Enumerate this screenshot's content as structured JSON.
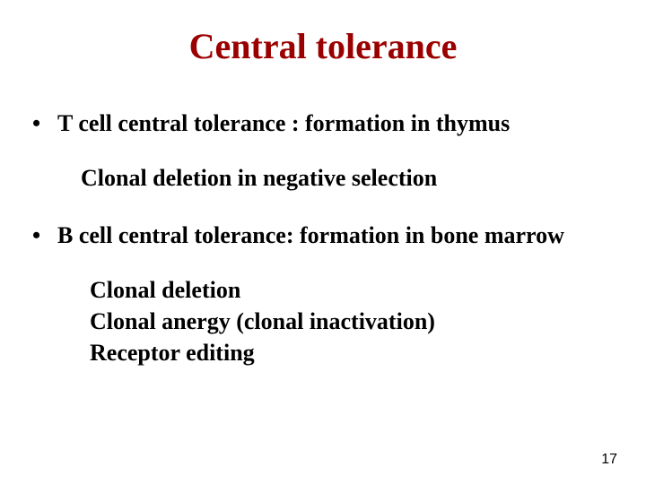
{
  "colors": {
    "title": "#9b0000",
    "text": "#000000",
    "background": "#ffffff"
  },
  "title": "Central tolerance",
  "bullet1": "T cell central tolerance : formation in thymus",
  "sub1": "Clonal deletion in negative selection",
  "bullet2": "B cell central tolerance: formation in bone marrow",
  "sub2a": "Clonal  deletion",
  "sub2b": "Clonal  anergy (clonal  inactivation)",
  "sub2c": "Receptor editing",
  "pageNumber": "17",
  "typography": {
    "title_fontsize": 40,
    "body_fontsize": 26,
    "pagenum_fontsize": 16,
    "font_family": "Times New Roman"
  }
}
